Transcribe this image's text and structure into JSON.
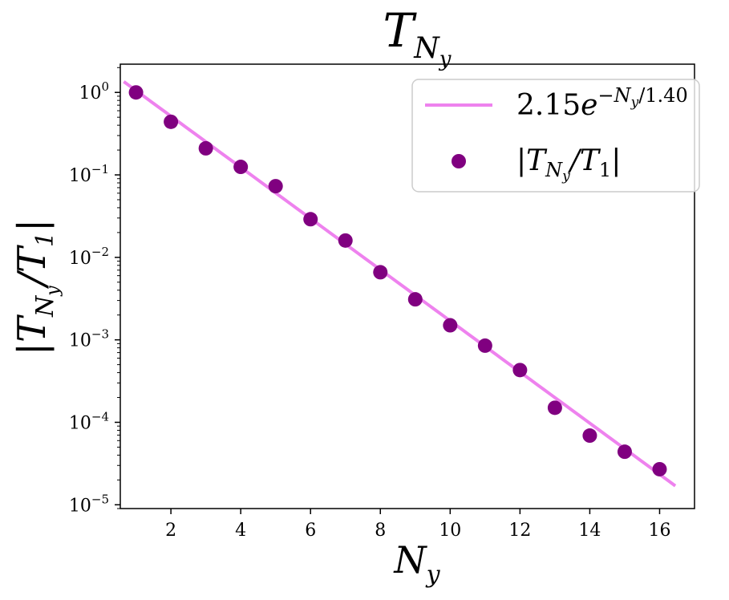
{
  "chart_data": {
    "type": "scatter",
    "title": "T_{N_y}",
    "xlabel": "N_y",
    "ylabel": "|T_{N_y}/T_1|",
    "yscale": "log",
    "xlim": [
      0.55,
      17.0
    ],
    "ylim": [
      9e-06,
      2.2
    ],
    "x_ticks": [
      2,
      4,
      6,
      8,
      10,
      12,
      14,
      16
    ],
    "y_tick_exponents": [
      0,
      -1,
      -2,
      -3,
      -4,
      -5
    ],
    "grid": false,
    "legend_position": "top-right",
    "series": [
      {
        "name": "|T_{N_y}/T_1|",
        "kind": "scatter",
        "color": "#800080",
        "x": [
          1,
          2,
          3,
          4,
          5,
          6,
          7,
          8,
          9,
          10,
          11,
          12,
          13,
          14,
          15,
          16
        ],
        "y": [
          1.0,
          0.44,
          0.21,
          0.125,
          0.073,
          0.029,
          0.016,
          0.0066,
          0.0031,
          0.0015,
          0.00085,
          0.00043,
          0.00015,
          6.9e-05,
          4.4e-05,
          2.7e-05
        ]
      },
      {
        "name": "2.15e^{-N_y/1.40}",
        "kind": "line",
        "color": "#ee82ee",
        "amplitude": 2.15,
        "decay_length": 1.4,
        "x_range": [
          0.65,
          16.45
        ]
      }
    ]
  }
}
